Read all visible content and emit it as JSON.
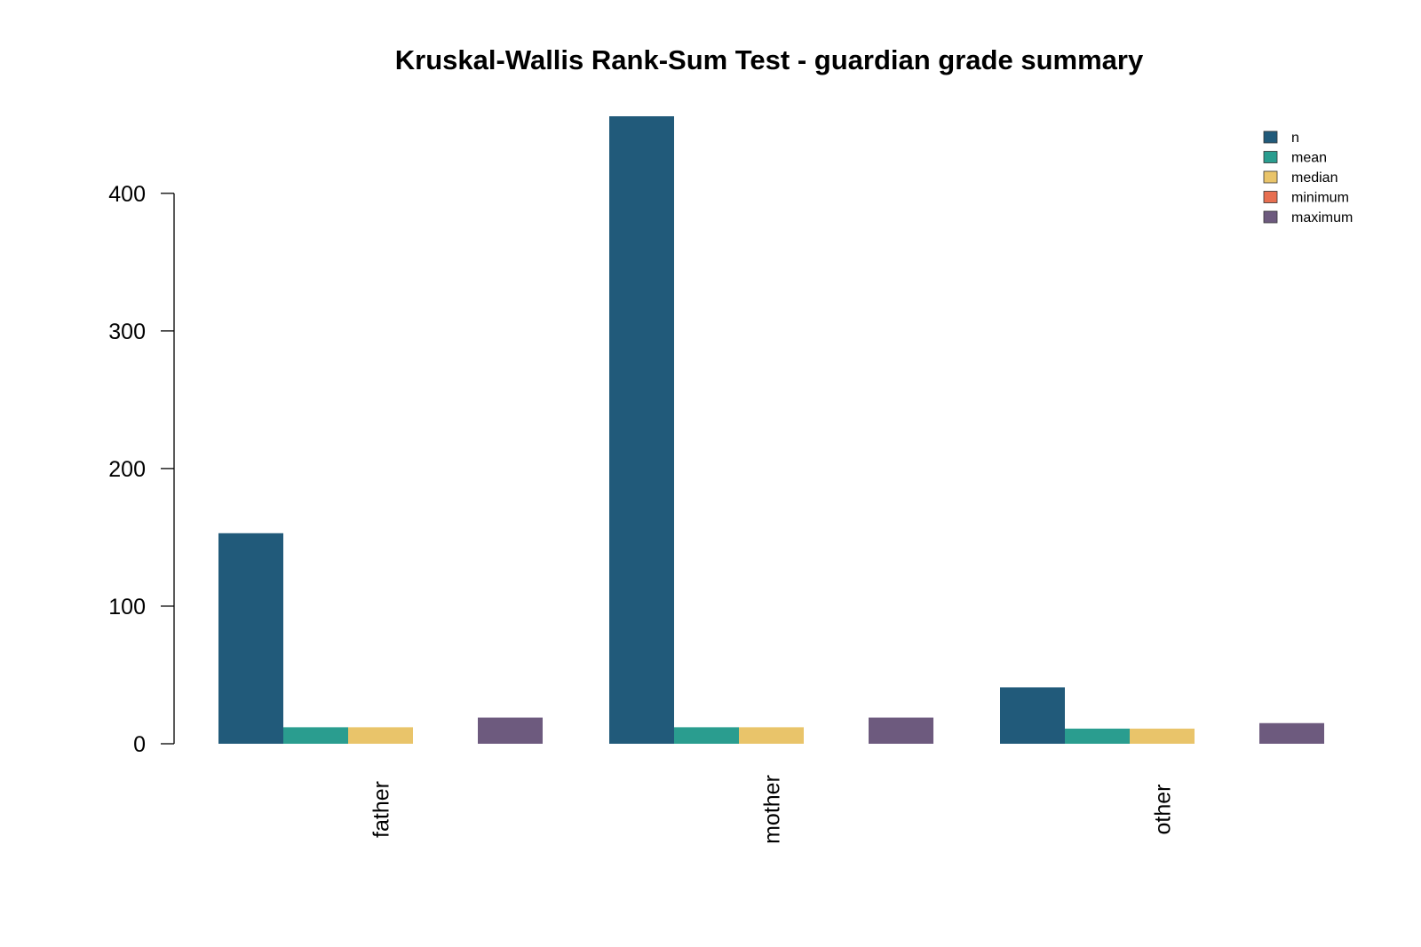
{
  "chart_data": {
    "type": "bar",
    "title": "Kruskal-Wallis Rank-Sum Test - guardian grade summary",
    "xlabel": "",
    "ylabel": "",
    "categories": [
      "father",
      "mother",
      "other"
    ],
    "series": [
      {
        "name": "n",
        "color": "#215a7a",
        "values": [
          153,
          456,
          41
        ]
      },
      {
        "name": "mean",
        "color": "#2a9d8f",
        "values": [
          12,
          12,
          11
        ]
      },
      {
        "name": "median",
        "color": "#e9c46a",
        "values": [
          12,
          12,
          11
        ]
      },
      {
        "name": "minimum",
        "color": "#e76f51",
        "values": [
          0,
          0,
          0
        ]
      },
      {
        "name": "maximum",
        "color": "#6d5a7e",
        "values": [
          19,
          19,
          15
        ]
      }
    ],
    "ylim": [
      0,
      456
    ],
    "yticks": [
      "0",
      "100",
      "200",
      "300",
      "400"
    ],
    "grid": false,
    "legend_position": "top-right"
  }
}
